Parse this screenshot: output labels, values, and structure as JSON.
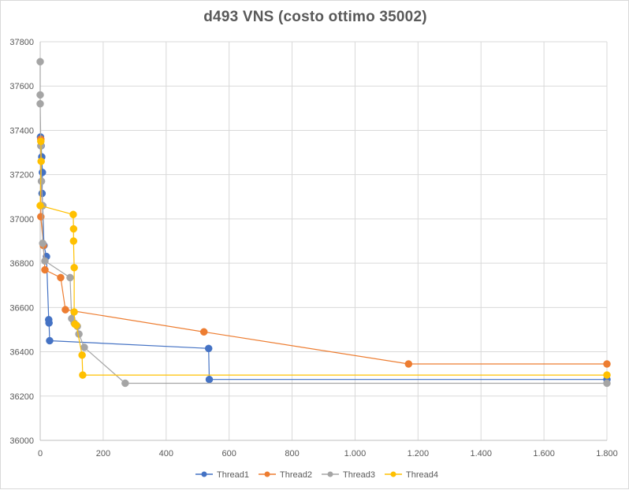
{
  "chart_data": {
    "type": "scatter",
    "title": "d493 VNS (costo ottimo 35002)",
    "xlabel": "",
    "ylabel": "",
    "xlim": [
      0,
      1800
    ],
    "ylim": [
      36000,
      37800
    ],
    "x_ticks": [
      0,
      200,
      400,
      600,
      800,
      1000,
      1200,
      1400,
      1600,
      1800
    ],
    "x_tick_labels": [
      "0",
      "200",
      "400",
      "600",
      "800",
      "1.000",
      "1.200",
      "1.400",
      "1.600",
      "1.800"
    ],
    "y_ticks": [
      36000,
      36200,
      36400,
      36600,
      36800,
      37000,
      37200,
      37400,
      37600,
      37800
    ],
    "y_tick_labels": [
      "36000",
      "36200",
      "36400",
      "36600",
      "36800",
      "37000",
      "37200",
      "37400",
      "37600",
      "37800"
    ],
    "grid": true,
    "legend_position": "bottom",
    "series": [
      {
        "name": "Thread1",
        "color": "#4472c4",
        "points": [
          [
            1,
            37370
          ],
          [
            3,
            37330
          ],
          [
            5,
            37280
          ],
          [
            7,
            37210
          ],
          [
            6,
            37115
          ],
          [
            8,
            37060
          ],
          [
            12,
            36880
          ],
          [
            20,
            36830
          ],
          [
            27,
            36545
          ],
          [
            28,
            36530
          ],
          [
            30,
            36450
          ],
          [
            535,
            36415
          ],
          [
            537,
            36275
          ],
          [
            1800,
            36275
          ]
        ]
      },
      {
        "name": "Thread2",
        "color": "#ed7d31",
        "points": [
          [
            2,
            37360
          ],
          [
            2,
            37010
          ],
          [
            10,
            36880
          ],
          [
            15,
            36770
          ],
          [
            65,
            36735
          ],
          [
            80,
            36590
          ],
          [
            520,
            36490
          ],
          [
            1170,
            36345
          ],
          [
            1800,
            36345
          ]
        ]
      },
      {
        "name": "Thread3",
        "color": "#a5a5a5",
        "points": [
          [
            0,
            37710
          ],
          [
            0,
            37560
          ],
          [
            0,
            37520
          ],
          [
            2,
            37330
          ],
          [
            4,
            37170
          ],
          [
            8,
            37060
          ],
          [
            8,
            36890
          ],
          [
            15,
            36810
          ],
          [
            95,
            36735
          ],
          [
            100,
            36550
          ],
          [
            108,
            36530
          ],
          [
            118,
            36515
          ],
          [
            123,
            36480
          ],
          [
            140,
            36420
          ],
          [
            270,
            36258
          ],
          [
            1800,
            36258
          ]
        ]
      },
      {
        "name": "Thread4",
        "color": "#ffc000",
        "points": [
          [
            2,
            37350
          ],
          [
            3,
            37260
          ],
          [
            0,
            37060
          ],
          [
            105,
            37020
          ],
          [
            106,
            36955
          ],
          [
            106,
            36900
          ],
          [
            108,
            36780
          ],
          [
            108,
            36580
          ],
          [
            110,
            36525
          ],
          [
            115,
            36520
          ],
          [
            133,
            36385
          ],
          [
            135,
            36295
          ],
          [
            1800,
            36295
          ]
        ]
      }
    ]
  }
}
